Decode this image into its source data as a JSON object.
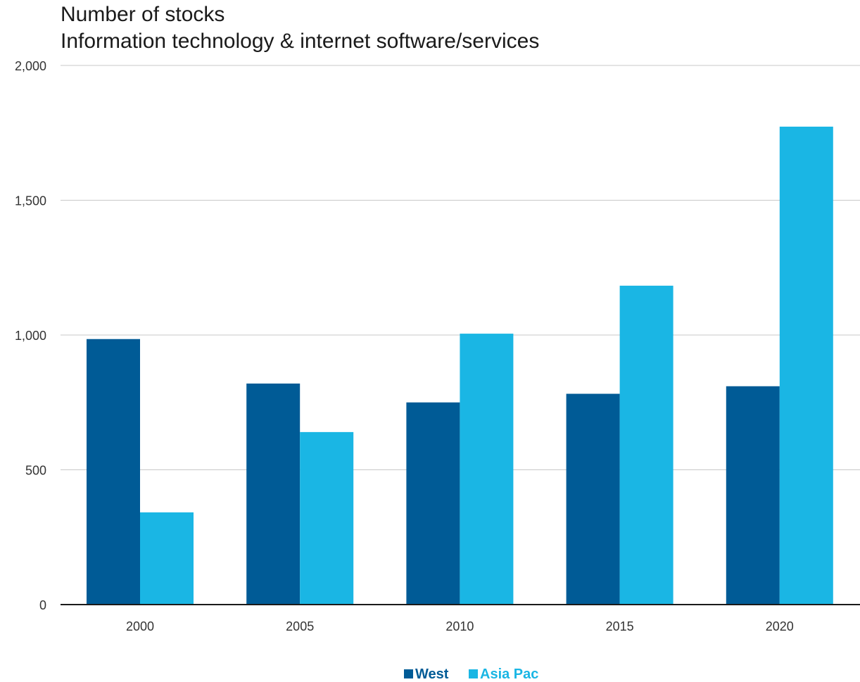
{
  "chart_data": {
    "type": "bar",
    "title": "Number of stocks",
    "subtitle": "Information technology & internet software/services",
    "xlabel": "",
    "ylabel": "",
    "categories": [
      "2000",
      "2005",
      "2010",
      "2015",
      "2020"
    ],
    "series": [
      {
        "name": "West",
        "color": "#005b96",
        "values": [
          985,
          820,
          750,
          782,
          810
        ]
      },
      {
        "name": "Asia Pac",
        "color": "#1ab6e4",
        "values": [
          342,
          640,
          1005,
          1183,
          1773
        ]
      }
    ],
    "ylim": [
      0,
      2000
    ],
    "yticks": [
      {
        "value": 0,
        "label": "0"
      },
      {
        "value": 500,
        "label": "500"
      },
      {
        "value": 1000,
        "label": "1,000"
      },
      {
        "value": 1500,
        "label": "1,500"
      },
      {
        "value": 2000,
        "label": "2,000"
      }
    ],
    "grid": true,
    "legend": "bottom-center"
  }
}
